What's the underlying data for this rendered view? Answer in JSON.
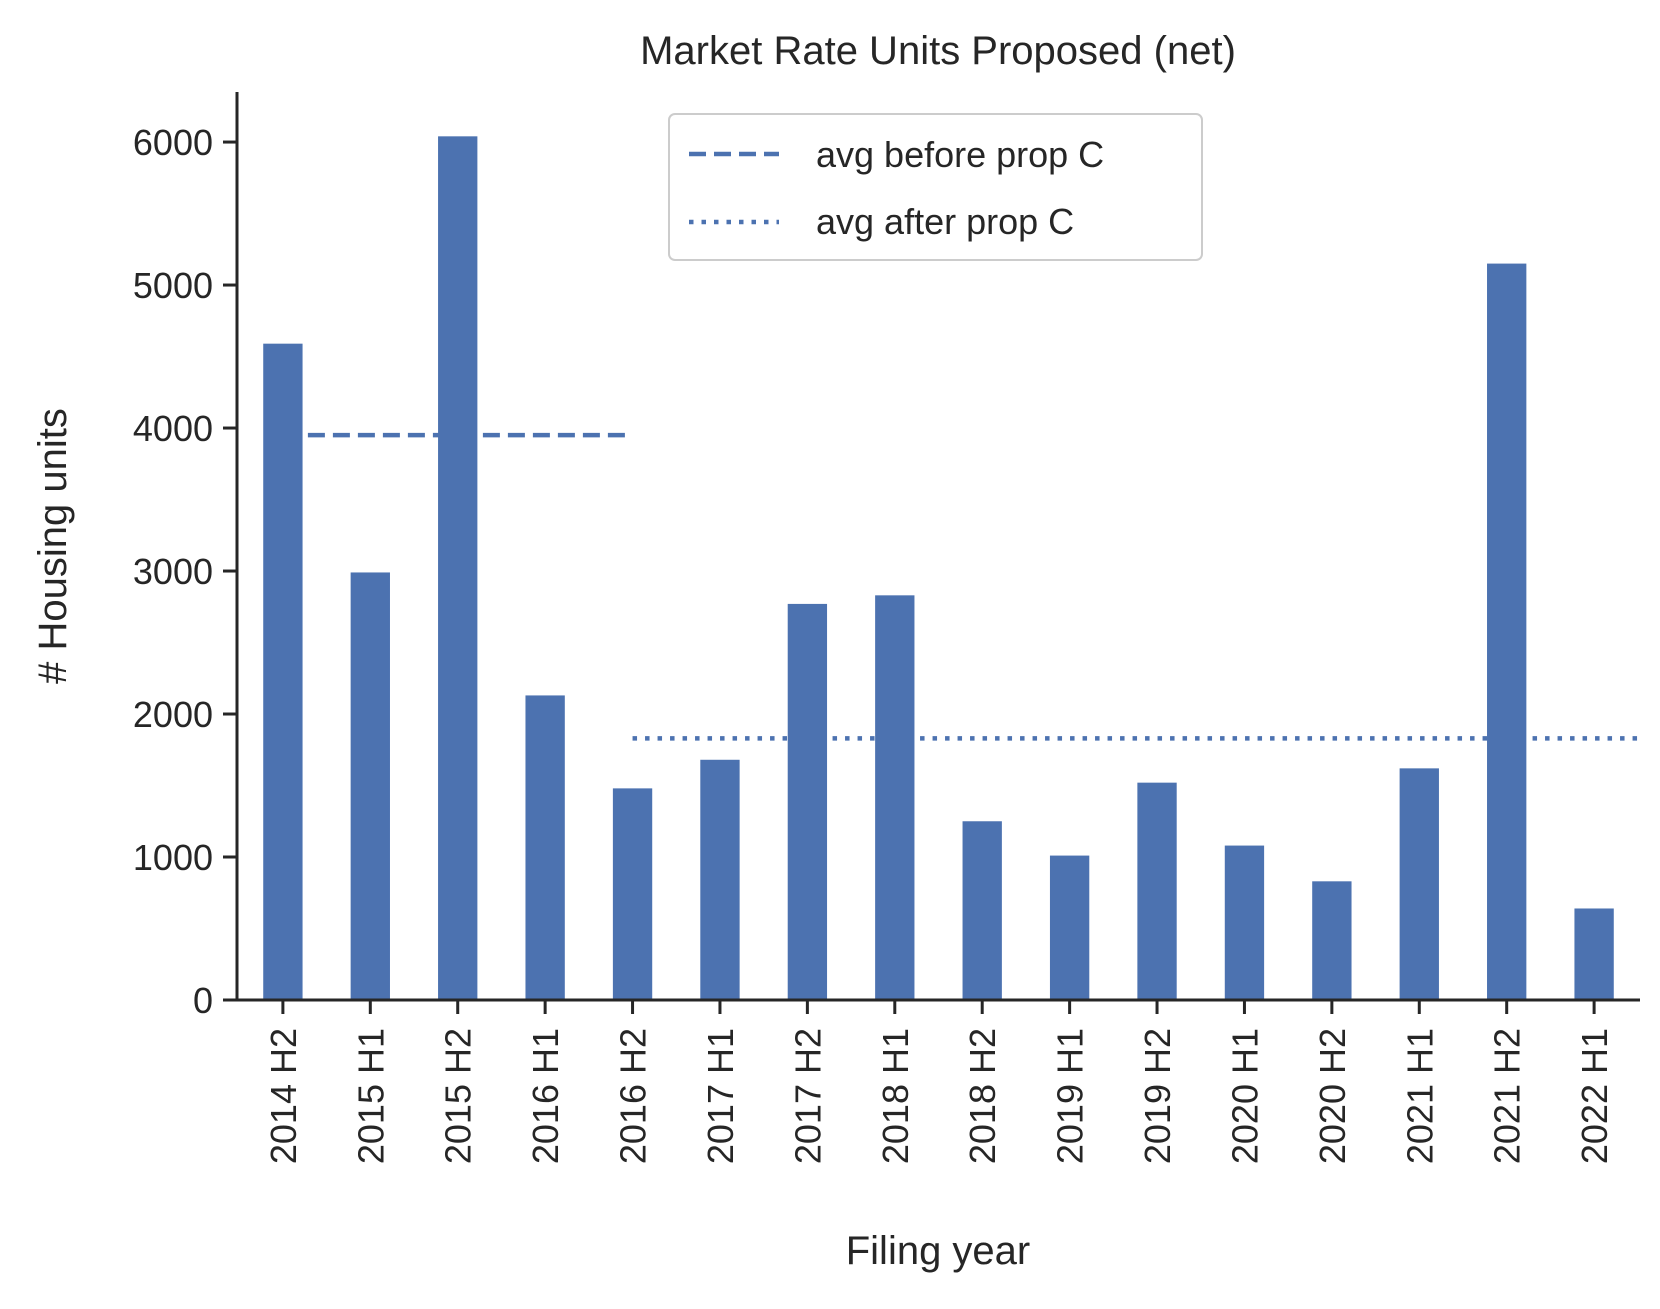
{
  "chart_data": {
    "type": "bar",
    "title": "Market Rate Units Proposed (net)",
    "xlabel": "Filing year",
    "ylabel": "# Housing units",
    "categories": [
      "2014 H2",
      "2015 H1",
      "2015 H2",
      "2016 H1",
      "2016 H2",
      "2017 H1",
      "2017 H2",
      "2018 H1",
      "2018 H2",
      "2019 H1",
      "2019 H2",
      "2020 H1",
      "2020 H2",
      "2021 H1",
      "2021 H2",
      "2022 H1"
    ],
    "values": [
      4590,
      2990,
      6040,
      2130,
      1480,
      1680,
      2770,
      2830,
      1250,
      1010,
      1520,
      1080,
      830,
      1620,
      5150,
      640
    ],
    "ylim": [
      0,
      6350
    ],
    "yticks": [
      0,
      1000,
      2000,
      3000,
      4000,
      5000,
      6000
    ],
    "bar_color": "#4c72b0",
    "legend_position": "top-center",
    "reference_lines": [
      {
        "name": "avg before prop C",
        "style": "dashed",
        "value": 3950,
        "from_category": "2014 H2",
        "to_category": "2016 H2"
      },
      {
        "name": "avg after prop C",
        "style": "dotted",
        "value": 1830,
        "from_category": "2016 H2",
        "to_category": "2022 H1"
      }
    ]
  }
}
